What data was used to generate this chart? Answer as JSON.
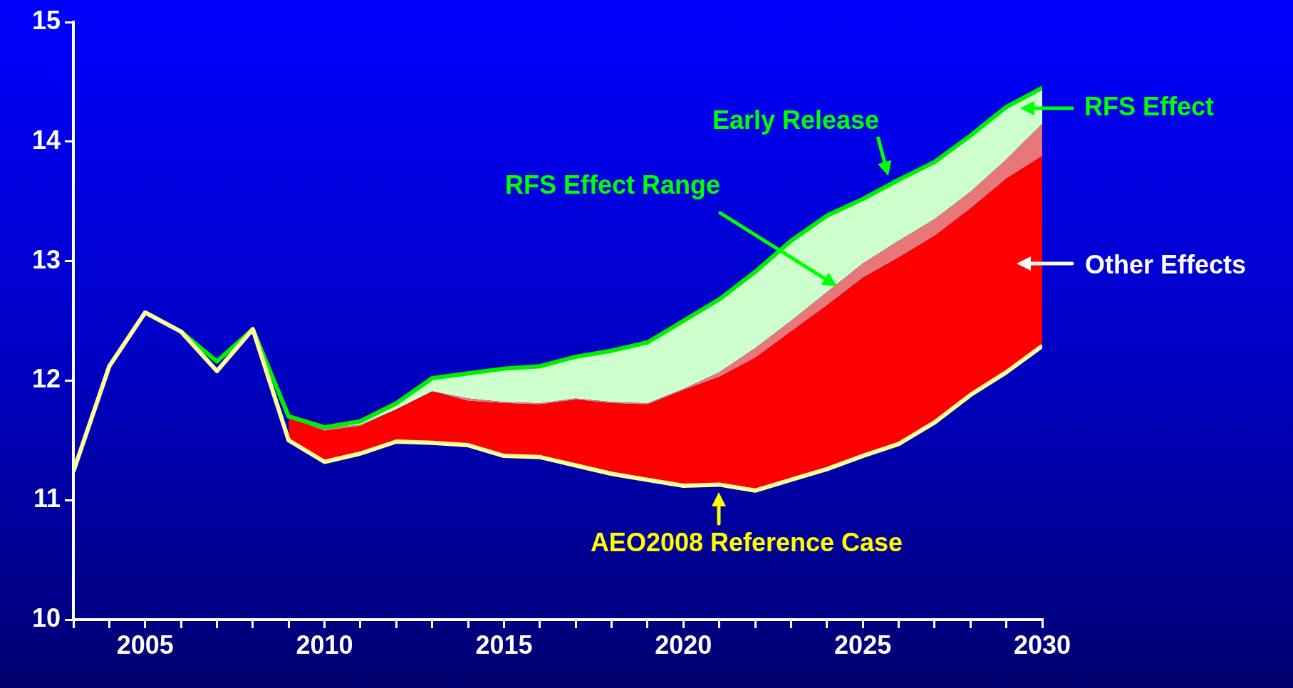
{
  "chart_data": {
    "type": "area",
    "x": [
      2003,
      2004,
      2005,
      2006,
      2007,
      2008,
      2009,
      2010,
      2011,
      2012,
      2013,
      2014,
      2015,
      2016,
      2017,
      2018,
      2019,
      2020,
      2021,
      2022,
      2023,
      2024,
      2025,
      2026,
      2027,
      2028,
      2029,
      2030
    ],
    "series": [
      {
        "type": "line",
        "color": "#ffff99",
        "values": [
          11.24,
          12.12,
          12.57,
          12.41,
          12.08,
          12.43,
          11.5,
          11.32,
          11.39,
          11.49,
          11.48,
          11.46,
          11.37,
          11.36,
          11.29,
          11.22,
          11.17,
          11.12,
          11.13,
          11.08,
          11.17,
          11.26,
          11.37,
          11.47,
          11.65,
          11.88,
          12.07,
          12.29
        ]
      },
      {
        "type": "area",
        "color": "#ff0000",
        "values": [
          null,
          null,
          null,
          null,
          null,
          null,
          11.69,
          11.58,
          11.62,
          11.76,
          11.91,
          11.83,
          11.81,
          11.8,
          11.84,
          11.81,
          11.8,
          11.92,
          12.03,
          12.19,
          12.41,
          12.63,
          12.86,
          13.03,
          13.21,
          13.44,
          13.69,
          13.88
        ]
      },
      {
        "type": "area",
        "color": "#e87878",
        "values": [
          null,
          null,
          null,
          null,
          null,
          null,
          11.7,
          11.6,
          11.63,
          11.76,
          11.91,
          11.85,
          11.82,
          11.81,
          11.85,
          11.82,
          11.81,
          11.93,
          12.07,
          12.27,
          12.5,
          12.74,
          12.98,
          13.17,
          13.35,
          13.58,
          13.85,
          14.15
        ]
      },
      {
        "color": "#ccffcc",
        "values": [
          null,
          null,
          null,
          null,
          null,
          null,
          11.7,
          11.61,
          11.66,
          11.81,
          12.02,
          12.06,
          12.1,
          12.12,
          12.2,
          12.25,
          12.32,
          12.5,
          12.68,
          12.91,
          13.17,
          13.38,
          13.52,
          13.68,
          13.83,
          14.05,
          14.29,
          14.45
        ]
      },
      {
        "type": "line",
        "color": "#00ee00",
        "values": [
          null,
          null,
          null,
          12.41,
          12.16,
          12.43,
          11.7,
          11.61,
          11.66,
          11.81,
          12.02,
          12.06,
          12.1,
          12.12,
          12.2,
          12.25,
          12.32,
          12.5,
          12.68,
          12.91,
          13.17,
          13.38,
          13.52,
          13.68,
          13.83,
          14.05,
          14.29,
          14.45
        ]
      }
    ],
    "xlim": [
      2003,
      2030
    ],
    "xticks": [
      {
        "value": 2003,
        "label": null
      },
      {
        "value": 2004,
        "label": null
      },
      2005,
      {
        "value": 2006,
        "label": null
      },
      {
        "value": 2007,
        "label": null
      },
      {
        "value": 2008,
        "label": null
      },
      {
        "value": 2009,
        "label": null
      },
      2010,
      {
        "value": 2011,
        "label": null
      },
      {
        "value": 2012,
        "label": null
      },
      {
        "value": 2013,
        "label": null
      },
      {
        "value": 2014,
        "label": null
      },
      2015,
      {
        "value": 2016,
        "label": null
      },
      {
        "value": 2017,
        "label": null
      },
      {
        "value": 2018,
        "label": null
      },
      {
        "value": 2019,
        "label": null
      },
      2020,
      {
        "value": 2021,
        "label": null
      },
      {
        "value": 2022,
        "label": null
      },
      {
        "value": 2023,
        "label": null
      },
      {
        "value": 2024,
        "label": null
      },
      2025,
      {
        "value": 2026,
        "label": null
      },
      {
        "value": 2027,
        "label": null
      },
      {
        "value": 2028,
        "label": null
      },
      {
        "value": 2029,
        "label": null
      },
      2030
    ],
    "ylim": [
      10,
      15
    ],
    "yticks": [
      10,
      11,
      12,
      13,
      14,
      15
    ],
    "grid": false,
    "legend": false,
    "annotations": [
      "Early Release",
      "RFS Effect",
      "RFS Effect Range",
      "Other Effects",
      "AEO2008 Reference Case"
    ]
  }
}
